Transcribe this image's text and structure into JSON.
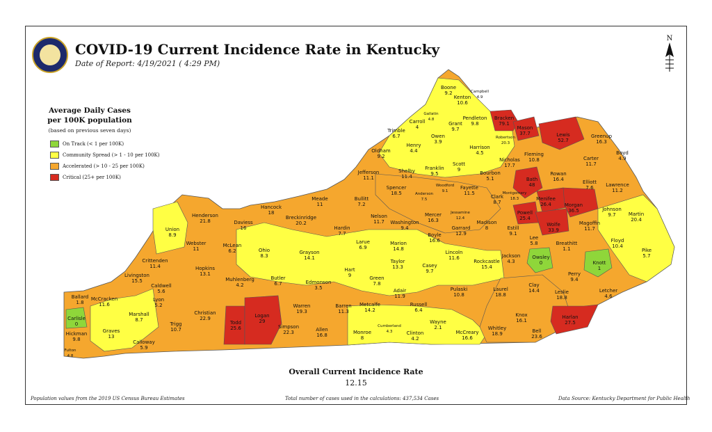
{
  "header": {
    "title": "COVID-19 Current Incidence Rate in Kentucky",
    "subtitle": "Date of Report: 4/19/2021 ( 4:29 PM)"
  },
  "compass_label": "N",
  "legend": {
    "title_line1": "Average Daily Cases",
    "title_line2": "per 100K population",
    "note": "(based on previous seven days)",
    "items": [
      {
        "label": "On Track (< 1 per 100K)",
        "color": "#8fd63a"
      },
      {
        "label": "Community Spread (> 1 - 10 per 100K)",
        "color": "#ffff44"
      },
      {
        "label": "Accelerated (> 10 - 25 per 100K)",
        "color": "#f5a72e"
      },
      {
        "label": "Critical (25+ per 100K)",
        "color": "#d62b20"
      }
    ]
  },
  "overall": {
    "title": "Overall Current Incidence Rate",
    "value": "12.15"
  },
  "footer": {
    "left": "Population values from the 2019 US Census Bureau Estimates",
    "center": "Total number of cases used in the calculations: 437,534 Cases",
    "right": "Data Source: Kentucky Department for Public Health"
  },
  "counties": [
    {
      "name": "Boone",
      "value": "9.2"
    },
    {
      "name": "Campbell",
      "value": "4.9"
    },
    {
      "name": "Kenton",
      "value": "10.6"
    },
    {
      "name": "Gallatin",
      "value": "4.8"
    },
    {
      "name": "Grant",
      "value": "9.7"
    },
    {
      "name": "Pendleton",
      "value": "9.8"
    },
    {
      "name": "Bracken",
      "value": "79.1"
    },
    {
      "name": "Mason",
      "value": "37.7"
    },
    {
      "name": "Robertson",
      "value": "20.3"
    },
    {
      "name": "Lewis",
      "value": "52.7"
    },
    {
      "name": "Greenup",
      "value": "16.3"
    },
    {
      "name": "Boyd",
      "value": "4.9"
    },
    {
      "name": "Carroll",
      "value": "4"
    },
    {
      "name": "Trimble",
      "value": "6.7"
    },
    {
      "name": "Owen",
      "value": "3.9"
    },
    {
      "name": "Henry",
      "value": "4.4"
    },
    {
      "name": "Oldham",
      "value": "9.2"
    },
    {
      "name": "Harrison",
      "value": "4.5"
    },
    {
      "name": "Nicholas",
      "value": "17.7"
    },
    {
      "name": "Fleming",
      "value": "10.8"
    },
    {
      "name": "Carter",
      "value": "11.7"
    },
    {
      "name": "Scott",
      "value": "9"
    },
    {
      "name": "Franklin",
      "value": "9.5"
    },
    {
      "name": "Shelby",
      "value": "11.4"
    },
    {
      "name": "Jefferson",
      "value": "11.1"
    },
    {
      "name": "Bourbon",
      "value": "5.1"
    },
    {
      "name": "Bath",
      "value": "48"
    },
    {
      "name": "Rowan",
      "value": "16.4"
    },
    {
      "name": "Elliott",
      "value": "7.6"
    },
    {
      "name": "Lawrence",
      "value": "11.2"
    },
    {
      "name": "Woodford",
      "value": "9.1"
    },
    {
      "name": "Fayette",
      "value": "11.5"
    },
    {
      "name": "Spencer",
      "value": "18.5"
    },
    {
      "name": "Anderson",
      "value": "7.5"
    },
    {
      "name": "Montgomery",
      "value": "18.3"
    },
    {
      "name": "Clark",
      "value": "8.7"
    },
    {
      "name": "Menifee",
      "value": "26.4"
    },
    {
      "name": "Morgan",
      "value": "36.5"
    },
    {
      "name": "Johnson",
      "value": "9.7"
    },
    {
      "name": "Martin",
      "value": "20.4"
    },
    {
      "name": "Meade",
      "value": "11"
    },
    {
      "name": "Bullitt",
      "value": "7.2"
    },
    {
      "name": "Nelson",
      "value": "11.7"
    },
    {
      "name": "Mercer",
      "value": "16.3"
    },
    {
      "name": "Jessamine",
      "value": "12.4"
    },
    {
      "name": "Powell",
      "value": "25.4"
    },
    {
      "name": "Wolfe",
      "value": "33.9"
    },
    {
      "name": "Magoffin",
      "value": "11.7"
    },
    {
      "name": "Hancock",
      "value": "18"
    },
    {
      "name": "Breckinridge",
      "value": "20.2"
    },
    {
      "name": "Hardin",
      "value": "7.7"
    },
    {
      "name": "Washington",
      "value": "9.4"
    },
    {
      "name": "Garrard",
      "value": "12.9"
    },
    {
      "name": "Madison",
      "value": "8"
    },
    {
      "name": "Estill",
      "value": "9.1"
    },
    {
      "name": "Lee",
      "value": "5.8"
    },
    {
      "name": "Breathitt",
      "value": "1.1"
    },
    {
      "name": "Floyd",
      "value": "10.4"
    },
    {
      "name": "Henderson",
      "value": "21.8"
    },
    {
      "name": "Daviess",
      "value": "16"
    },
    {
      "name": "Union",
      "value": "8.9"
    },
    {
      "name": "Larue",
      "value": "6.9"
    },
    {
      "name": "Boyle",
      "value": "16.6"
    },
    {
      "name": "Marion",
      "value": "14.8"
    },
    {
      "name": "Lincoln",
      "value": "11.6"
    },
    {
      "name": "Webster",
      "value": "11"
    },
    {
      "name": "McLean",
      "value": "6.2"
    },
    {
      "name": "Ohio",
      "value": "8.3"
    },
    {
      "name": "Grayson",
      "value": "14.1"
    },
    {
      "name": "Taylor",
      "value": "13.3"
    },
    {
      "name": "Casey",
      "value": "9.7"
    },
    {
      "name": "Rockcastle",
      "value": "15.4"
    },
    {
      "name": "Jackson",
      "value": "4.3"
    },
    {
      "name": "Owsley",
      "value": "0"
    },
    {
      "name": "Knott",
      "value": "1"
    },
    {
      "name": "Pike",
      "value": "5.7"
    },
    {
      "name": "Perry",
      "value": "9.4"
    },
    {
      "name": "Crittenden",
      "value": "11.4"
    },
    {
      "name": "Hopkins",
      "value": "13.1"
    },
    {
      "name": "Livingston",
      "value": "15.5"
    },
    {
      "name": "Caldwell",
      "value": "5.6"
    },
    {
      "name": "Muhlenberg",
      "value": "4.2"
    },
    {
      "name": "Butler",
      "value": "6.7"
    },
    {
      "name": "Edmonson",
      "value": "3.5"
    },
    {
      "name": "Hart",
      "value": "9"
    },
    {
      "name": "Green",
      "value": "7.8"
    },
    {
      "name": "Adair",
      "value": "11.9"
    },
    {
      "name": "Pulaski",
      "value": "10.8"
    },
    {
      "name": "Laurel",
      "value": "18.8"
    },
    {
      "name": "Clay",
      "value": "14.4"
    },
    {
      "name": "Leslie",
      "value": "18.8"
    },
    {
      "name": "Letcher",
      "value": "4.6"
    },
    {
      "name": "Ballard",
      "value": "1.8"
    },
    {
      "name": "McCracken",
      "value": "11.6"
    },
    {
      "name": "Lyon",
      "value": "5.2"
    },
    {
      "name": "Marshall",
      "value": "8.7"
    },
    {
      "name": "Christian",
      "value": "22.9"
    },
    {
      "name": "Todd",
      "value": "25.6"
    },
    {
      "name": "Logan",
      "value": "29"
    },
    {
      "name": "Warren",
      "value": "19.3"
    },
    {
      "name": "Barren",
      "value": "11.3"
    },
    {
      "name": "Metcalfe",
      "value": "14.2"
    },
    {
      "name": "Russell",
      "value": "6.4"
    },
    {
      "name": "Knox",
      "value": "16.1"
    },
    {
      "name": "Harlan",
      "value": "27.5"
    },
    {
      "name": "Carlisle",
      "value": "0"
    },
    {
      "name": "Graves",
      "value": "13"
    },
    {
      "name": "Trigg",
      "value": "10.7"
    },
    {
      "name": "Simpson",
      "value": "22.3"
    },
    {
      "name": "Allen",
      "value": "16.8"
    },
    {
      "name": "Monroe",
      "value": "8"
    },
    {
      "name": "Cumberland",
      "value": "4.3"
    },
    {
      "name": "Clinton",
      "value": "4.2"
    },
    {
      "name": "Wayne",
      "value": "2.1"
    },
    {
      "name": "McCreary",
      "value": "16.6"
    },
    {
      "name": "Whitley",
      "value": "18.9"
    },
    {
      "name": "Bell",
      "value": "23.6"
    },
    {
      "name": "Hickman",
      "value": "9.8"
    },
    {
      "name": "Calloway",
      "value": "5.9"
    },
    {
      "name": "Fulton",
      "value": "4.8"
    }
  ]
}
